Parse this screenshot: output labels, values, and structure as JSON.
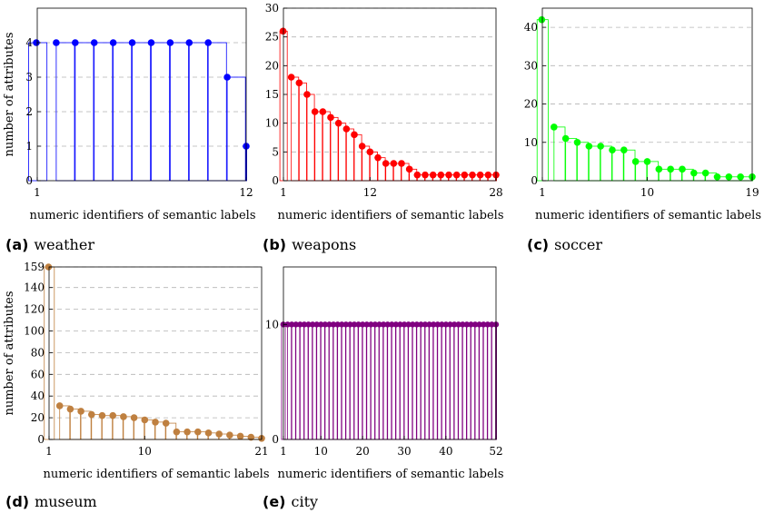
{
  "chart_data": [
    {
      "id": "weather",
      "type": "bar",
      "caption_letter": "(a)",
      "caption_name": "weather",
      "xlabel": "numeric identifiers of semantic labels",
      "ylabel": "number of attributes",
      "xlim": [
        1,
        12
      ],
      "ylim": [
        0,
        5
      ],
      "xticks": [
        1,
        12
      ],
      "yticks": [
        0,
        1,
        2,
        3,
        4
      ],
      "color": "#0000ff",
      "values": [
        4,
        4,
        4,
        4,
        4,
        4,
        4,
        4,
        4,
        4,
        3,
        1
      ]
    },
    {
      "id": "weapons",
      "type": "bar",
      "caption_letter": "(b)",
      "caption_name": "weapons",
      "xlabel": "numeric identifiers of semantic labels",
      "ylabel": "",
      "xlim": [
        1,
        28
      ],
      "ylim": [
        0,
        30
      ],
      "xticks": [
        1,
        12,
        28
      ],
      "yticks": [
        0,
        5,
        10,
        15,
        20,
        25,
        30
      ],
      "color": "#ff0000",
      "values": [
        26,
        18,
        17,
        15,
        12,
        12,
        11,
        10,
        9,
        8,
        6,
        5,
        4,
        3,
        3,
        3,
        2,
        1,
        1,
        1,
        1,
        1,
        1,
        1,
        1,
        1,
        1,
        1
      ]
    },
    {
      "id": "soccer",
      "type": "bar",
      "caption_letter": "(c)",
      "caption_name": "soccer",
      "xlabel": "numeric identifiers of semantic labels",
      "ylabel": "",
      "xlim": [
        1,
        19
      ],
      "ylim": [
        0,
        45
      ],
      "xticks": [
        1,
        10,
        19
      ],
      "yticks": [
        0,
        10,
        20,
        30,
        40
      ],
      "color": "#00ff00",
      "values": [
        42,
        14,
        11,
        10,
        9,
        9,
        8,
        8,
        5,
        5,
        3,
        3,
        3,
        2,
        2,
        1,
        1,
        1,
        1
      ]
    },
    {
      "id": "museum",
      "type": "bar",
      "caption_letter": "(d)",
      "caption_name": "museum",
      "xlabel": "numeric identifiers of semantic labels",
      "ylabel": "number of attributes",
      "xlim": [
        1,
        21
      ],
      "ylim": [
        0,
        159
      ],
      "xticks": [
        1,
        10,
        21
      ],
      "yticks": [
        0,
        20,
        40,
        60,
        80,
        100,
        120,
        140,
        159
      ],
      "color": "#bf8040",
      "values": [
        159,
        31,
        28,
        26,
        23,
        22,
        22,
        21,
        20,
        18,
        16,
        15,
        7,
        7,
        7,
        6,
        5,
        4,
        3,
        2,
        1
      ]
    },
    {
      "id": "city",
      "type": "bar",
      "caption_letter": "(e)",
      "caption_name": "city",
      "xlabel": "numeric identifiers of semantic labels",
      "ylabel": "",
      "xlim": [
        1,
        52
      ],
      "ylim": [
        0,
        15
      ],
      "xticks": [
        1,
        10,
        20,
        30,
        40,
        52
      ],
      "yticks": [
        0,
        10
      ],
      "color": "#800080",
      "values": [
        10,
        10,
        10,
        10,
        10,
        10,
        10,
        10,
        10,
        10,
        10,
        10,
        10,
        10,
        10,
        10,
        10,
        10,
        10,
        10,
        10,
        10,
        10,
        10,
        10,
        10,
        10,
        10,
        10,
        10,
        10,
        10,
        10,
        10,
        10,
        10,
        10,
        10,
        10,
        10,
        10,
        10,
        10,
        10,
        10,
        10,
        10,
        10,
        10,
        10,
        10,
        10
      ]
    }
  ]
}
